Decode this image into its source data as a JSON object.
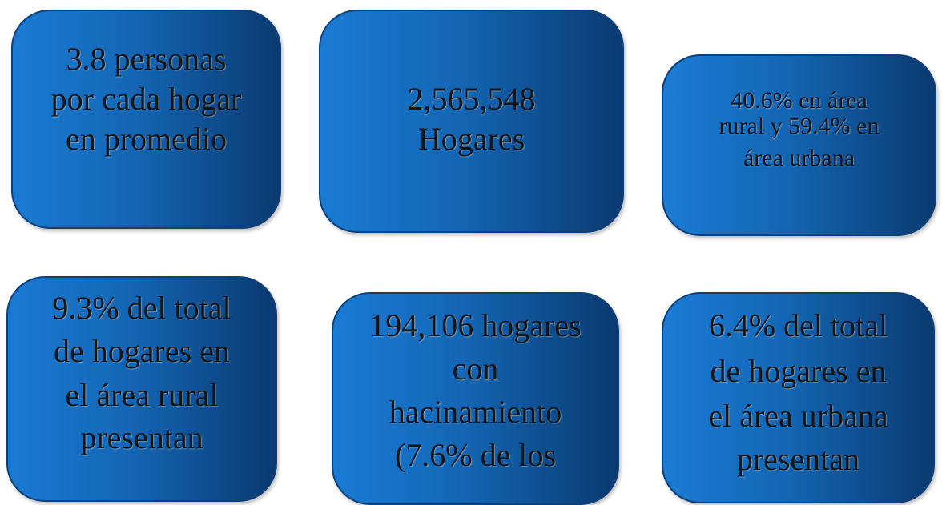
{
  "boxes": [
    {
      "lines": [
        "3.8 personas",
        "por cada hogar",
        "en promedio"
      ]
    },
    {
      "lines": [
        "2,565,548",
        "Hogares"
      ]
    },
    {
      "lines": [
        "40.6% en área",
        "rural y 59.4% en",
        "área urbana"
      ]
    },
    {
      "lines": [
        "9.3% del total",
        "de hogares en",
        "el área rural",
        "presentan"
      ]
    },
    {
      "lines": [
        "194,106 hogares",
        "con",
        "hacinamiento",
        "(7.6% de los"
      ]
    },
    {
      "lines": [
        "6.4% del total",
        "de hogares en",
        "el área urbana",
        "presentan"
      ]
    }
  ]
}
